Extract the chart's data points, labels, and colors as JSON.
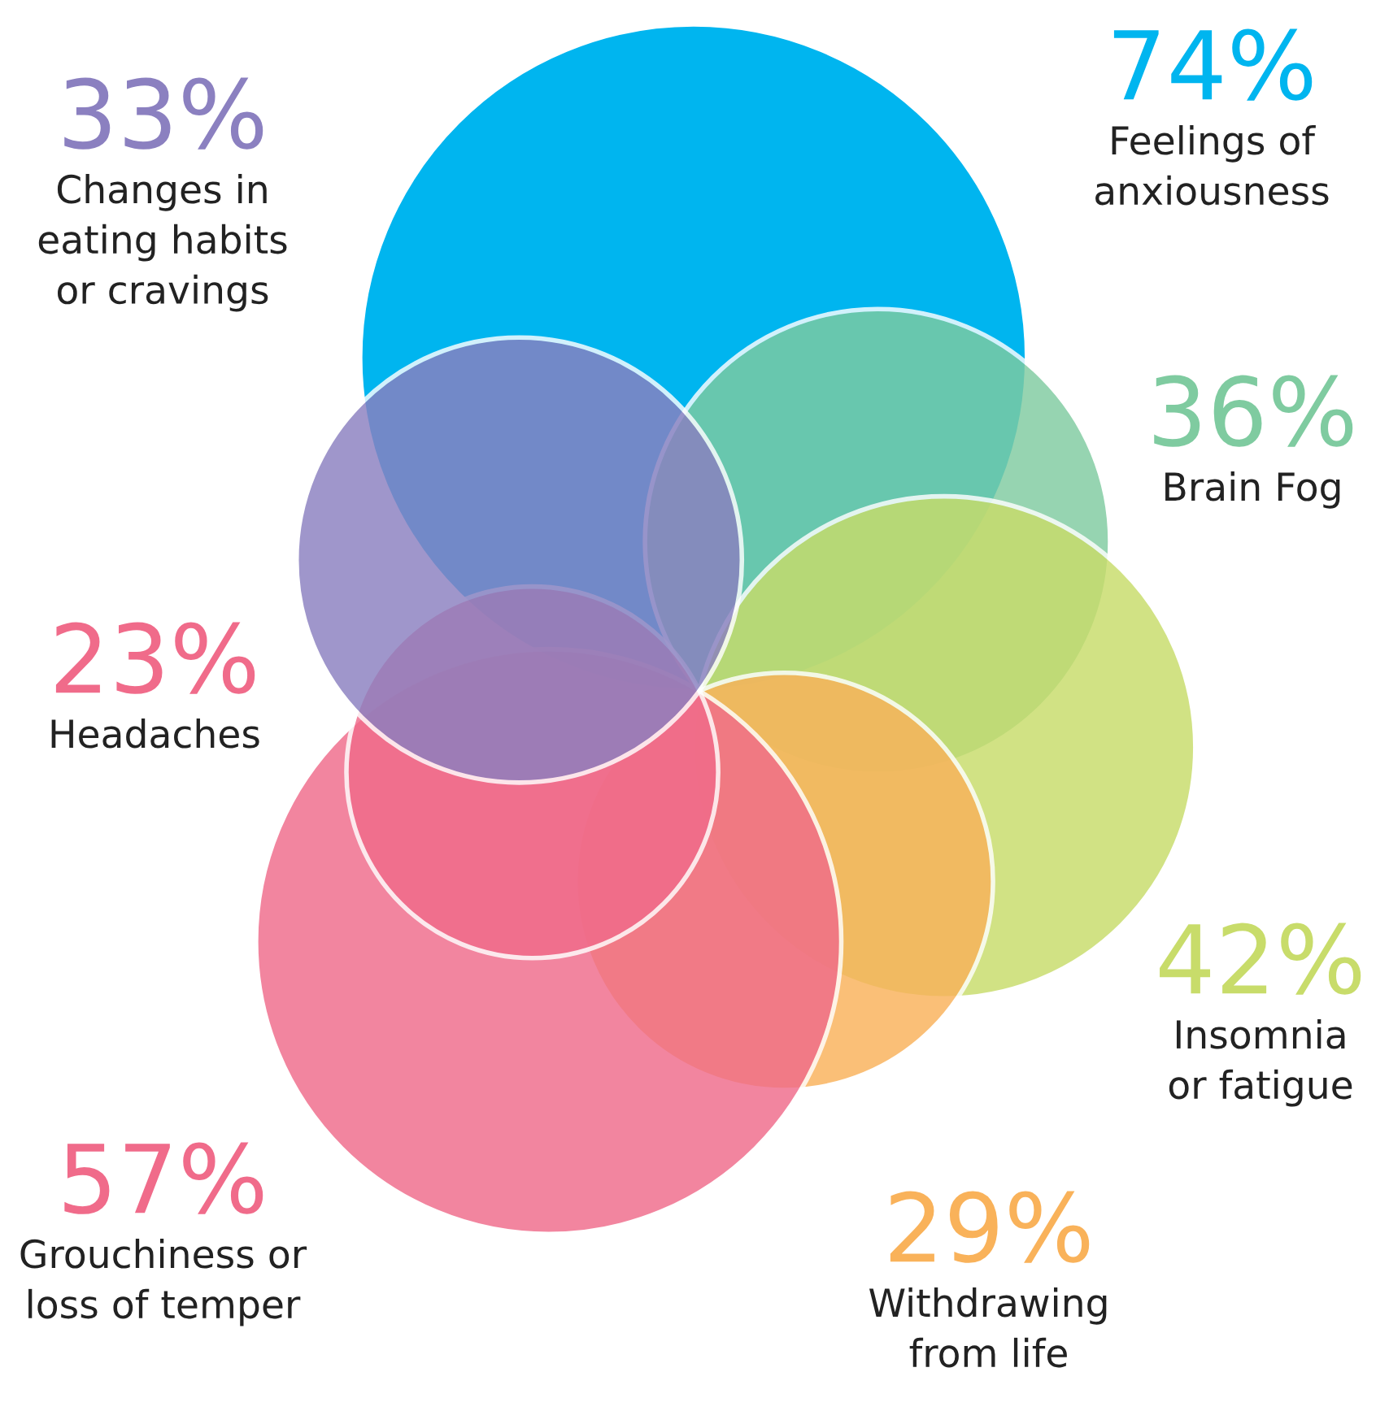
{
  "chart_data": {
    "type": "other",
    "categories": [
      "Feelings of\nanxiousness",
      "Brain Fog",
      "Insomnia\nor fatigue",
      "Withdrawing\nfrom life",
      "Grouchiness or\nloss of temper",
      "Headaches",
      "Changes in\neating habits\nor cravings"
    ],
    "values": [
      74,
      36,
      42,
      29,
      57,
      23,
      33
    ],
    "value_labels": [
      "74%",
      "36%",
      "42%",
      "29%",
      "57%",
      "23%",
      "33%"
    ],
    "colors": [
      "#00b5ef",
      "#7fcba0",
      "#c8dc6a",
      "#f9b25a",
      "#f06b8a",
      "#f06b8a",
      "#8b80c0"
    ]
  }
}
